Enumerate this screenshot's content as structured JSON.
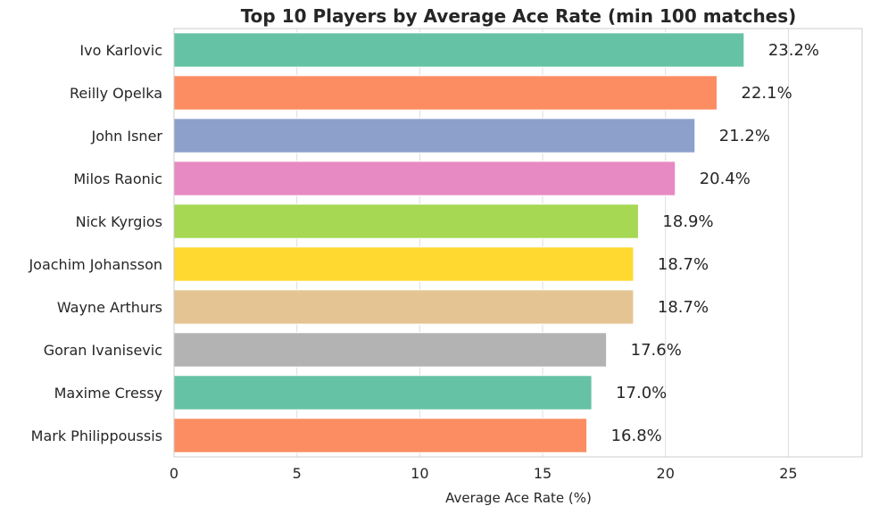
{
  "chart_data": {
    "type": "bar",
    "orientation": "horizontal",
    "title": "Top 10 Players by Average Ace Rate (min 100 matches)",
    "xlabel": "Average Ace Rate (%)",
    "ylabel": "",
    "xlim": [
      0,
      28
    ],
    "xticks": [
      "0",
      "5",
      "10",
      "15",
      "20",
      "25"
    ],
    "grid": true,
    "categories": [
      "Ivo Karlovic",
      "Reilly Opelka",
      "John Isner",
      "Milos Raonic",
      "Nick Kyrgios",
      "Joachim Johansson",
      "Wayne Arthurs",
      "Goran Ivanisevic",
      "Maxime Cressy",
      "Mark Philippoussis"
    ],
    "values": [
      23.2,
      22.1,
      21.2,
      20.4,
      18.9,
      18.7,
      18.7,
      17.6,
      17.0,
      16.8
    ],
    "data_labels": [
      "23.2%",
      "22.1%",
      "21.2%",
      "20.4%",
      "18.9%",
      "18.7%",
      "18.7%",
      "17.6%",
      "17.0%",
      "16.8%"
    ],
    "colors": [
      "#66c2a5",
      "#fc8d62",
      "#8da0cb",
      "#e78ac3",
      "#a6d854",
      "#ffd92f",
      "#e5c494",
      "#b3b3b3",
      "#66c2a5",
      "#fc8d62"
    ]
  }
}
